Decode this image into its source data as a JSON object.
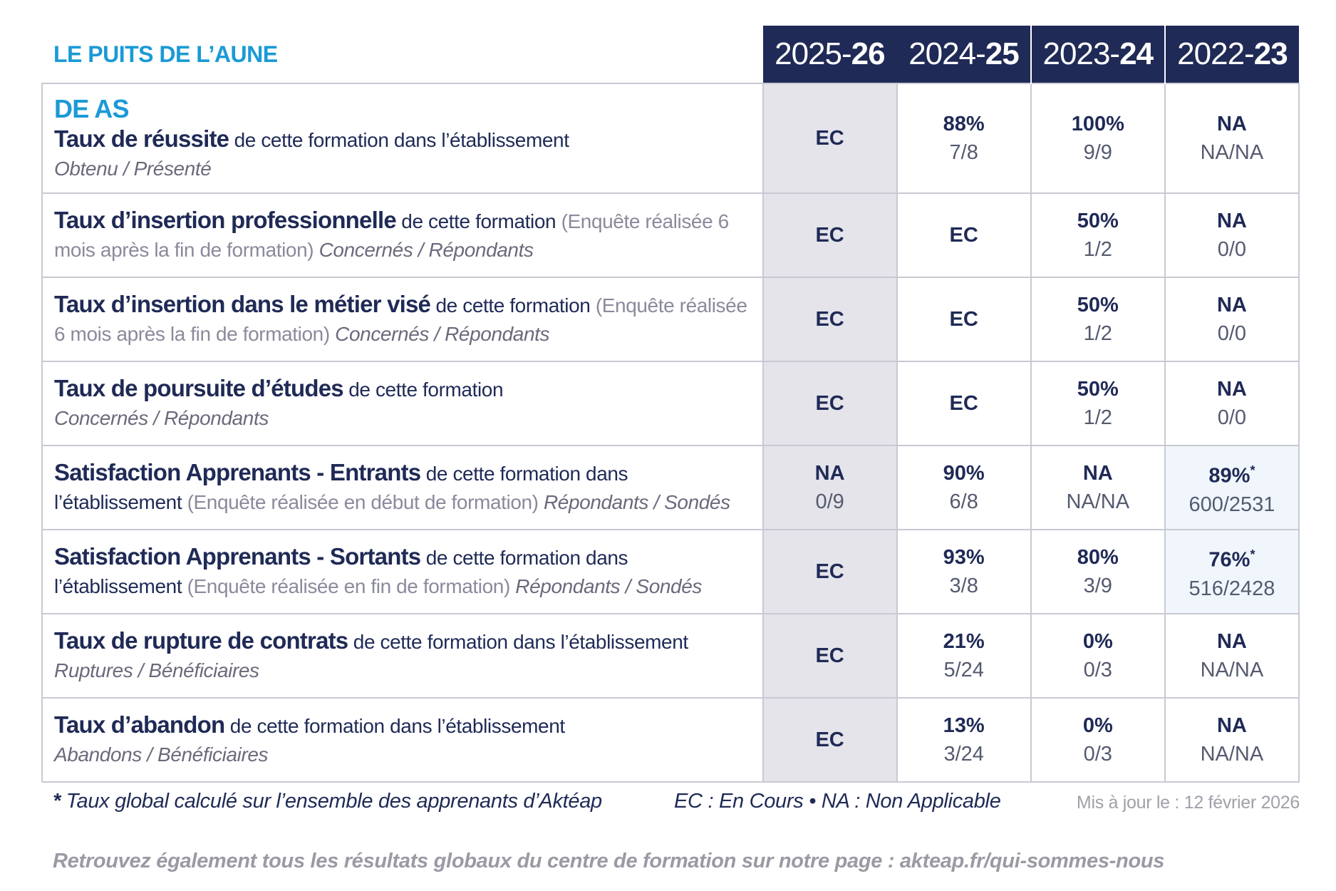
{
  "header": {
    "title": "LE PUITS DE L’AUNE",
    "years": [
      {
        "prefix": "2025-",
        "suffix": "26"
      },
      {
        "prefix": "2024-",
        "suffix": "25"
      },
      {
        "prefix": "2023-",
        "suffix": "24"
      },
      {
        "prefix": "2022-",
        "suffix": "23"
      }
    ]
  },
  "table": {
    "rows": [
      {
        "section": "DE AS",
        "bold": "Taux de réussite",
        "rest": "de cette formation dans l’établissement",
        "ratio": "Obtenu / Présenté",
        "cells": [
          {
            "main": "EC"
          },
          {
            "main": "88%",
            "sub": "7/8"
          },
          {
            "main": "100%",
            "sub": "9/9"
          },
          {
            "main": "NA",
            "sub": "NA/NA"
          }
        ]
      },
      {
        "bold": "Taux d’insertion professionnelle",
        "rest": "de cette formation",
        "note": "(Enquête réalisée 6 mois après la fin de formation)",
        "ratio": "Concernés / Répondants",
        "cells": [
          {
            "main": "EC"
          },
          {
            "main": "EC"
          },
          {
            "main": "50%",
            "sub": "1/2"
          },
          {
            "main": "NA",
            "sub": "0/0"
          }
        ]
      },
      {
        "bold": "Taux d’insertion dans le métier visé",
        "rest": "de cette formation",
        "note": "(Enquête réalisée 6 mois après la fin de formation)",
        "ratio": "Concernés / Répondants",
        "cells": [
          {
            "main": "EC"
          },
          {
            "main": "EC"
          },
          {
            "main": "50%",
            "sub": "1/2"
          },
          {
            "main": "NA",
            "sub": "0/0"
          }
        ]
      },
      {
        "bold": "Taux de poursuite d’études",
        "rest": "de cette formation",
        "ratio": "Concernés / Répondants",
        "cells": [
          {
            "main": "EC"
          },
          {
            "main": "EC"
          },
          {
            "main": "50%",
            "sub": "1/2"
          },
          {
            "main": "NA",
            "sub": "0/0"
          }
        ]
      },
      {
        "bold": "Satisfaction Apprenants - Entrants",
        "rest": "de cette formation dans l’établissement",
        "note": "(Enquête réalisée en début de formation)",
        "ratio": "Répondants / Sondés",
        "cells": [
          {
            "main": "NA",
            "sub": "0/9"
          },
          {
            "main": "90%",
            "sub": "6/8"
          },
          {
            "main": "NA",
            "sub": "NA/NA"
          },
          {
            "main": "89%",
            "star": "*",
            "sub": "600/2531"
          }
        ]
      },
      {
        "bold": "Satisfaction Apprenants - Sortants",
        "rest": "de cette formation dans l’établissement",
        "note": "(Enquête réalisée en fin de formation)",
        "ratio": "Répondants / Sondés",
        "cells": [
          {
            "main": "EC"
          },
          {
            "main": "93%",
            "sub": "3/8"
          },
          {
            "main": "80%",
            "sub": "3/9"
          },
          {
            "main": "76%",
            "star": "*",
            "sub": "516/2428"
          }
        ]
      },
      {
        "bold": "Taux de rupture de contrats",
        "rest": "de cette formation dans l’établissement",
        "ratio": "Ruptures / Bénéficiaires",
        "cells": [
          {
            "main": "EC"
          },
          {
            "main": "21%",
            "sub": "5/24"
          },
          {
            "main": "0%",
            "sub": "0/3"
          },
          {
            "main": "NA",
            "sub": "NA/NA"
          }
        ]
      },
      {
        "bold": "Taux d’abandon",
        "rest": "de cette formation dans l’établissement",
        "ratio": "Abandons / Bénéficiaires",
        "cells": [
          {
            "main": "EC"
          },
          {
            "main": "13%",
            "sub": "3/24"
          },
          {
            "main": "0%",
            "sub": "0/3"
          },
          {
            "main": "NA",
            "sub": "NA/NA"
          }
        ]
      }
    ]
  },
  "footer": {
    "star": "*",
    "note": "Taux global calculé sur l’ensemble des apprenants d’Aktéap",
    "ec": "EC : En Cours",
    "bullet": "•",
    "na": "NA : Non Applicable",
    "updated": "Mis à jour le : 12 février 2026",
    "bottom": "Retrouvez également tous les résultats globaux du centre de formation sur notre page : akteap.fr/qui-sommes-nous"
  }
}
